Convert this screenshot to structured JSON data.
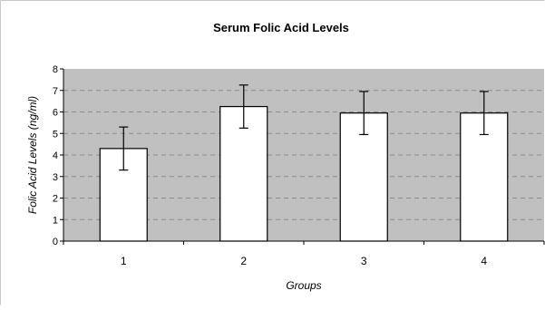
{
  "chart_data": {
    "type": "bar",
    "title": "Serum Folic Acid Levels",
    "xlabel": "Groups",
    "ylabel": "Folic Acid Levels (ng/ml)",
    "categories": [
      "1",
      "2",
      "3",
      "4"
    ],
    "values": [
      4.3,
      6.25,
      5.95,
      5.95
    ],
    "error": [
      1.0,
      1.0,
      1.0,
      1.0
    ],
    "ylim": [
      0,
      8
    ],
    "yticks": [
      "0",
      "1",
      "2",
      "3",
      "4",
      "5",
      "6",
      "7",
      "8"
    ],
    "grid": true,
    "legend": "none",
    "colors": {
      "plot_background": "#c0c0c0",
      "bar_fill": "#ffffff",
      "bar_stroke": "#000000",
      "gridline": "#8c8c8c"
    }
  }
}
